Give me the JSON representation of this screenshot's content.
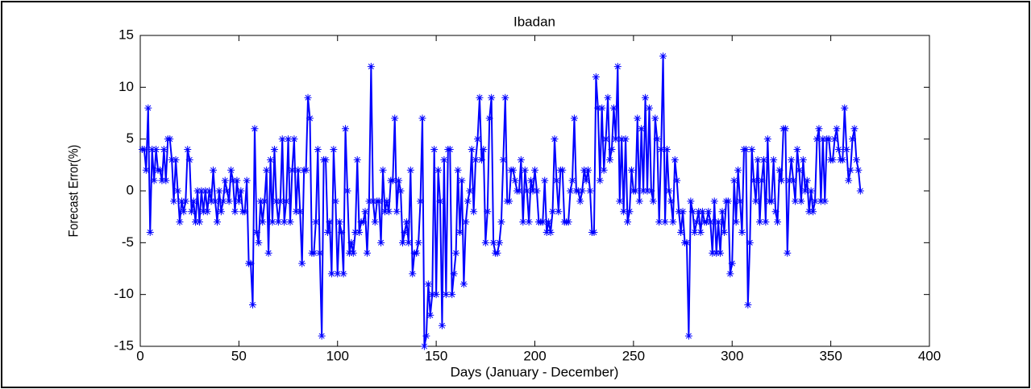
{
  "chart_data": {
    "type": "line",
    "title": "Ibadan",
    "xlabel": "Days (January - December)",
    "ylabel": "Forecast Error(%)",
    "x": [
      1,
      2,
      3,
      4,
      5,
      6,
      7,
      8,
      9,
      10,
      11,
      12,
      13,
      14,
      15,
      16,
      17,
      18,
      19,
      20,
      21,
      22,
      23,
      24,
      25,
      26,
      27,
      28,
      29,
      30,
      31,
      32,
      33,
      34,
      35,
      36,
      37,
      38,
      39,
      40,
      41,
      42,
      43,
      44,
      45,
      46,
      47,
      48,
      49,
      50,
      51,
      52,
      53,
      54,
      55,
      56,
      57,
      58,
      59,
      60,
      61,
      62,
      63,
      64,
      65,
      66,
      67,
      68,
      69,
      70,
      71,
      72,
      73,
      74,
      75,
      76,
      77,
      78,
      79,
      80,
      81,
      82,
      83,
      84,
      85,
      86,
      87,
      88,
      89,
      90,
      91,
      92,
      93,
      94,
      95,
      96,
      97,
      98,
      99,
      100,
      101,
      102,
      103,
      104,
      105,
      106,
      107,
      108,
      109,
      110,
      111,
      112,
      113,
      114,
      115,
      116,
      117,
      118,
      119,
      120,
      121,
      122,
      123,
      124,
      125,
      126,
      127,
      128,
      129,
      130,
      131,
      132,
      133,
      134,
      135,
      136,
      137,
      138,
      139,
      140,
      141,
      142,
      143,
      144,
      145,
      146,
      147,
      148,
      149,
      150,
      151,
      152,
      153,
      154,
      155,
      156,
      157,
      158,
      159,
      160,
      161,
      162,
      163,
      164,
      165,
      166,
      167,
      168,
      169,
      170,
      171,
      172,
      173,
      174,
      175,
      176,
      177,
      178,
      179,
      180,
      181,
      182,
      183,
      184,
      185,
      186,
      187,
      188,
      189,
      190,
      191,
      192,
      193,
      194,
      195,
      196,
      197,
      198,
      199,
      200,
      201,
      202,
      203,
      204,
      205,
      206,
      207,
      208,
      209,
      210,
      211,
      212,
      213,
      214,
      215,
      216,
      217,
      218,
      219,
      220,
      221,
      222,
      223,
      224,
      225,
      226,
      227,
      228,
      229,
      230,
      231,
      232,
      233,
      234,
      235,
      236,
      237,
      238,
      239,
      240,
      241,
      242,
      243,
      244,
      245,
      246,
      247,
      248,
      249,
      250,
      251,
      252,
      253,
      254,
      255,
      256,
      257,
      258,
      259,
      260,
      261,
      262,
      263,
      264,
      265,
      266,
      267,
      268,
      269,
      270,
      271,
      272,
      273,
      274,
      275,
      276,
      277,
      278,
      279,
      280,
      281,
      282,
      283,
      284,
      285,
      286,
      287,
      288,
      289,
      290,
      291,
      292,
      293,
      294,
      295,
      296,
      297,
      298,
      299,
      300,
      301,
      302,
      303,
      304,
      305,
      306,
      307,
      308,
      309,
      310,
      311,
      312,
      313,
      314,
      315,
      316,
      317,
      318,
      319,
      320,
      321,
      322,
      323,
      324,
      325,
      326,
      327,
      328,
      329,
      330,
      331,
      332,
      333,
      334,
      335,
      336,
      337,
      338,
      339,
      340,
      341,
      342,
      343,
      344,
      345,
      346,
      347,
      348,
      349,
      350,
      351,
      352,
      353,
      354,
      355,
      356,
      357,
      358,
      359,
      360,
      361,
      362,
      363,
      364,
      365
    ],
    "series": [
      {
        "color": "#0000ff",
        "values": [
          4,
          4,
          2,
          8,
          -4,
          4,
          1,
          4,
          2,
          2,
          1,
          4,
          1,
          5,
          5,
          3,
          -1,
          3,
          0,
          -3,
          -1,
          -2,
          -1,
          4,
          3,
          -2,
          -1,
          -3,
          0,
          -3,
          0,
          -2,
          0,
          -2,
          0,
          -1,
          2,
          -1,
          -3,
          0,
          -2,
          -1,
          1,
          0,
          -1,
          2,
          1,
          -2,
          1,
          -1,
          0,
          -2,
          -2,
          1,
          -7,
          -7,
          -11,
          6,
          -4,
          -5,
          -1,
          -3,
          -1,
          2,
          -6,
          3,
          -3,
          4,
          -1,
          -3,
          -1,
          5,
          -3,
          -1,
          5,
          -3,
          2,
          5,
          -2,
          2,
          -2,
          -7,
          2,
          2,
          9,
          7,
          -6,
          -6,
          -3,
          4,
          -6,
          -14,
          3,
          3,
          -4,
          -3,
          -8,
          4,
          -1,
          -8,
          -3,
          -4,
          -8,
          6,
          0,
          -6,
          -5,
          -6,
          -4,
          3,
          -4,
          -3,
          -3,
          -2,
          -6,
          -1,
          12,
          -1,
          -3,
          -1,
          -1,
          -5,
          2,
          -2,
          -1,
          -2,
          1,
          1,
          7,
          -2,
          1,
          0,
          -5,
          -4,
          -3,
          -5,
          2,
          -8,
          -6,
          -6,
          -5,
          -1,
          7,
          -15,
          -14,
          -9,
          -12,
          -10,
          4,
          -10,
          2,
          -1,
          -13,
          3,
          -10,
          4,
          4,
          -10,
          -8,
          -6,
          2,
          -4,
          1,
          -9,
          -3,
          -1,
          0,
          4,
          -2,
          3,
          5,
          9,
          3,
          4,
          -5,
          -2,
          7,
          9,
          -5,
          -6,
          -6,
          -5,
          -3,
          3,
          9,
          -1,
          -1,
          2,
          2,
          1,
          0,
          0,
          3,
          -3,
          2,
          0,
          -3,
          1,
          0,
          2,
          0,
          -3,
          -3,
          -3,
          1,
          -4,
          -3,
          -4,
          -2,
          5,
          1,
          -2,
          2,
          2,
          -3,
          -3,
          -3,
          0,
          1,
          7,
          0,
          0,
          -1,
          0,
          2,
          1,
          2,
          0,
          -4,
          -4,
          11,
          8,
          1,
          8,
          2,
          5,
          9,
          3,
          4,
          8,
          5,
          12,
          -1,
          5,
          -2,
          5,
          -3,
          -2,
          2,
          0,
          0,
          7,
          -1,
          6,
          0,
          9,
          0,
          8,
          0,
          -1,
          7,
          5,
          -3,
          4,
          13,
          -3,
          4,
          0,
          -1,
          -3,
          3,
          1,
          -2,
          -4,
          -2,
          -5,
          -5,
          -14,
          -1,
          -2,
          -4,
          -3,
          -2,
          -4,
          -2,
          -3,
          -3,
          -2,
          -3,
          -6,
          -1,
          -6,
          -3,
          -6,
          -2,
          -4,
          -1,
          -1,
          -8,
          -7,
          1,
          -3,
          2,
          -1,
          -4,
          4,
          4,
          -11,
          -5,
          4,
          1,
          -1,
          3,
          -3,
          1,
          3,
          -3,
          5,
          -1,
          -1,
          3,
          -2,
          -3,
          2,
          1,
          6,
          6,
          -6,
          1,
          3,
          1,
          -1,
          4,
          2,
          -1,
          3,
          0,
          1,
          -2,
          0,
          -2,
          -1,
          5,
          6,
          -1,
          5,
          -1,
          5,
          5,
          3,
          3,
          5,
          6,
          4,
          3,
          3,
          8,
          4,
          1,
          2,
          5,
          6,
          3,
          2,
          0
        ]
      }
    ],
    "xlim": [
      0,
      400
    ],
    "xticks": [
      0,
      50,
      100,
      150,
      200,
      250,
      300,
      350,
      400
    ],
    "ylim": [
      -15,
      15
    ],
    "yticks": [
      -15,
      -10,
      -5,
      0,
      5,
      10,
      15
    ]
  }
}
